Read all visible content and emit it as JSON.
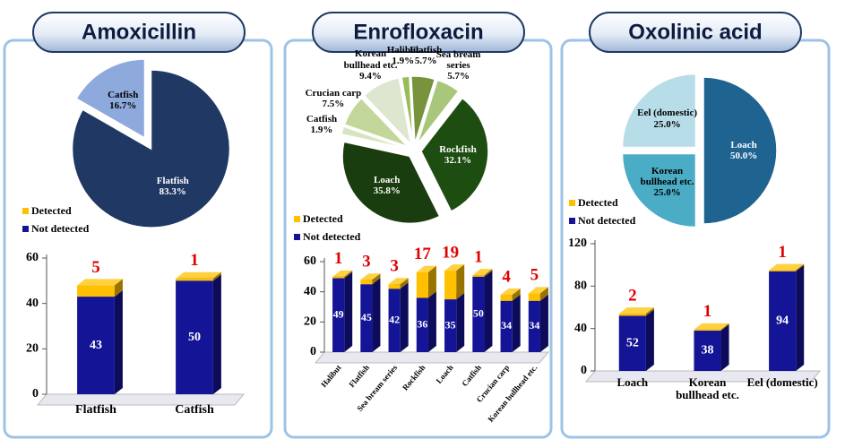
{
  "chart_data": [
    {
      "type": "pie",
      "title": "Amoxicillin",
      "categories": [
        "Flatfish",
        "Catfish"
      ],
      "values": [
        83.3,
        16.7
      ],
      "value_labels": [
        "83.3%",
        "16.7%"
      ],
      "colors": [
        "#1f3864",
        "#8ea9db"
      ]
    },
    {
      "type": "bar",
      "stacked": true,
      "categories": [
        "Flatfish",
        "Catfish"
      ],
      "series": [
        {
          "name": "Not detected",
          "color": "#141496",
          "values": [
            43,
            50
          ]
        },
        {
          "name": "Detected",
          "color": "#ffc000",
          "values": [
            5,
            1
          ]
        }
      ],
      "ylim": [
        0,
        60
      ],
      "yticks": [
        0,
        20,
        40,
        60
      ]
    },
    {
      "type": "pie",
      "title": "Enrofloxacin",
      "categories": [
        "Halibut",
        "Flatfish",
        "Sea bream series",
        "Rockfish",
        "Loach",
        "Catfish",
        "Crucian carp",
        "Korean bullhead etc."
      ],
      "values": [
        1.9,
        5.7,
        5.7,
        32.1,
        35.8,
        1.9,
        7.5,
        9.4
      ],
      "value_labels": [
        "1.9%",
        "5.7%",
        "5.7%",
        "32.1%",
        "35.8%",
        "1.9%",
        "7.5%",
        "9.4%"
      ],
      "colors": [
        "#9bbb59",
        "#77933c",
        "#a9c77a",
        "#1e4d12",
        "#1a3d0f",
        "#d7e4bd",
        "#c4d79b",
        "#dde6cf"
      ]
    },
    {
      "type": "bar",
      "stacked": true,
      "categories": [
        "Halibut",
        "Flatfish",
        "Sea bream series",
        "Rockfish",
        "Loach",
        "Catfish",
        "Crucian carp",
        "Korean bullhead etc."
      ],
      "series": [
        {
          "name": "Not detected",
          "color": "#141496",
          "values": [
            49,
            45,
            42,
            36,
            35,
            50,
            34,
            34
          ]
        },
        {
          "name": "Detected",
          "color": "#ffc000",
          "values": [
            1,
            3,
            3,
            17,
            19,
            1,
            4,
            5
          ]
        }
      ],
      "ylim": [
        0,
        60
      ],
      "yticks": [
        0,
        20,
        40,
        60
      ]
    },
    {
      "type": "pie",
      "title": "Oxolinic acid",
      "categories": [
        "Loach",
        "Korean bullhead etc.",
        "Eel (domestic)"
      ],
      "values": [
        50.0,
        25.0,
        25.0
      ],
      "value_labels": [
        "50.0%",
        "25.0%",
        "25.0%"
      ],
      "colors": [
        "#1f6391",
        "#4bacc6",
        "#b7dde8"
      ]
    },
    {
      "type": "bar",
      "stacked": true,
      "categories": [
        "Loach",
        "Korean bullhead etc.",
        "Eel (domestic)"
      ],
      "series": [
        {
          "name": "Not detected",
          "color": "#141496",
          "values": [
            52,
            38,
            94
          ]
        },
        {
          "name": "Detected",
          "color": "#ffc000",
          "values": [
            2,
            1,
            1
          ]
        }
      ],
      "ylim": [
        0,
        120
      ],
      "yticks": [
        0,
        40,
        80,
        120
      ]
    }
  ]
}
